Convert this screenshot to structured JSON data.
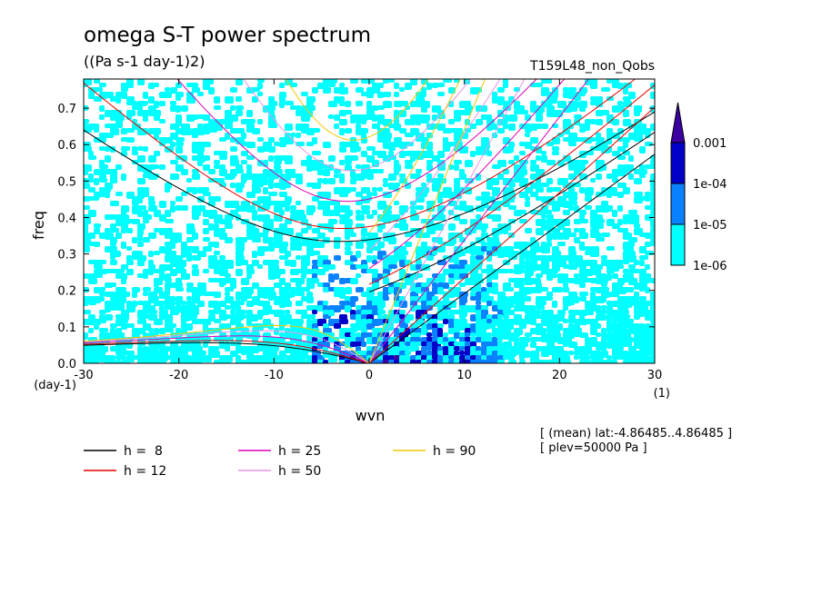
{
  "chart_data": {
    "type": "heatmap",
    "title": "omega S-T power spectrum",
    "subtitle": "((Pa s-1 day-1)2)",
    "run_label": "T159L48_non_Qobs",
    "xlabel": "wvn",
    "ylabel": "freq",
    "x_unit": "(1)",
    "y_unit": "(day-1)",
    "xlim": [
      -30,
      30
    ],
    "ylim": [
      0,
      0.78
    ],
    "xticks": [
      "-30",
      "-20",
      "-10",
      "0",
      "10",
      "20",
      "30"
    ],
    "yticks": [
      "0.0",
      "0.1",
      "0.2",
      "0.3",
      "0.4",
      "0.5",
      "0.6",
      "0.7"
    ],
    "colorbar": {
      "levels": [
        "1e-06",
        "1e-05",
        "1e-04",
        "0.001"
      ],
      "colors": [
        "#00ffff",
        "#0a82ff",
        "#0000c8",
        "#3c00a0"
      ]
    },
    "legend": [
      {
        "label": "h =  8",
        "color": "#000000"
      },
      {
        "label": "h = 25",
        "color": "#dc00b4"
      },
      {
        "label": "h = 90",
        "color": "#f0c800"
      },
      {
        "label": "h = 12",
        "color": "#e60000"
      },
      {
        "label": "h = 50",
        "color": "#e696e6"
      }
    ],
    "annotations": [
      "[ (mean) lat:-4.86485..4.86485 ]",
      "[ plev=50000 Pa ]"
    ],
    "curves": {
      "inertio_gravity_min_freq": [
        {
          "h": 8,
          "wvn": -2,
          "freq": 0.33
        },
        {
          "h": 12,
          "wvn": -2,
          "freq": 0.37
        },
        {
          "h": 25,
          "wvn": -2,
          "freq": 0.45
        },
        {
          "h": 50,
          "wvn": -2,
          "freq": 0.53
        },
        {
          "h": 90,
          "wvn": -1,
          "freq": 0.61
        }
      ],
      "kelvin_freq_at_wvn_30": [
        {
          "h": 8,
          "freq": 0.57
        },
        {
          "h": 12,
          "freq": 0.68
        }
      ],
      "rossby_freq_at_wvn_minus_30": [
        {
          "h": 8,
          "freq": 0.05
        },
        {
          "h": 90,
          "freq": 0.06
        }
      ]
    }
  }
}
